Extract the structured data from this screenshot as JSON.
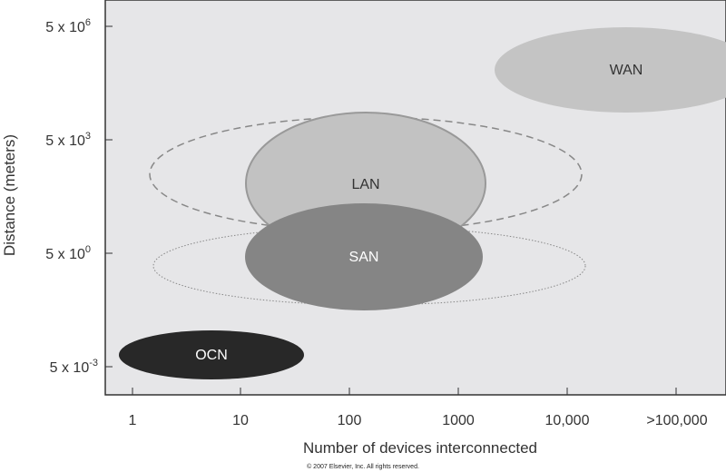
{
  "diagram": {
    "y_axis_label": "Distance (meters)",
    "x_axis_label": "Number of devices interconnected",
    "y_ticks": [
      {
        "base": "5 x 10",
        "exp": "6"
      },
      {
        "base": "5 x 10",
        "exp": "3"
      },
      {
        "base": "5 x 10",
        "exp": "0"
      },
      {
        "base": "5 x 10",
        "exp": "-3"
      }
    ],
    "x_ticks": [
      "1",
      "10",
      "100",
      "1000",
      "10,000",
      ">100,000"
    ],
    "regions": {
      "wan": "WAN",
      "lan": "LAN",
      "san": "SAN",
      "ocn": "OCN"
    },
    "colors": {
      "background": "#e6e6e8",
      "wan": "#c4c4c4",
      "lan": "#c2c2c2",
      "san": "#858585",
      "ocn": "#282828"
    },
    "copyright": "© 2007 Elsevier, Inc. All rights reserved."
  }
}
